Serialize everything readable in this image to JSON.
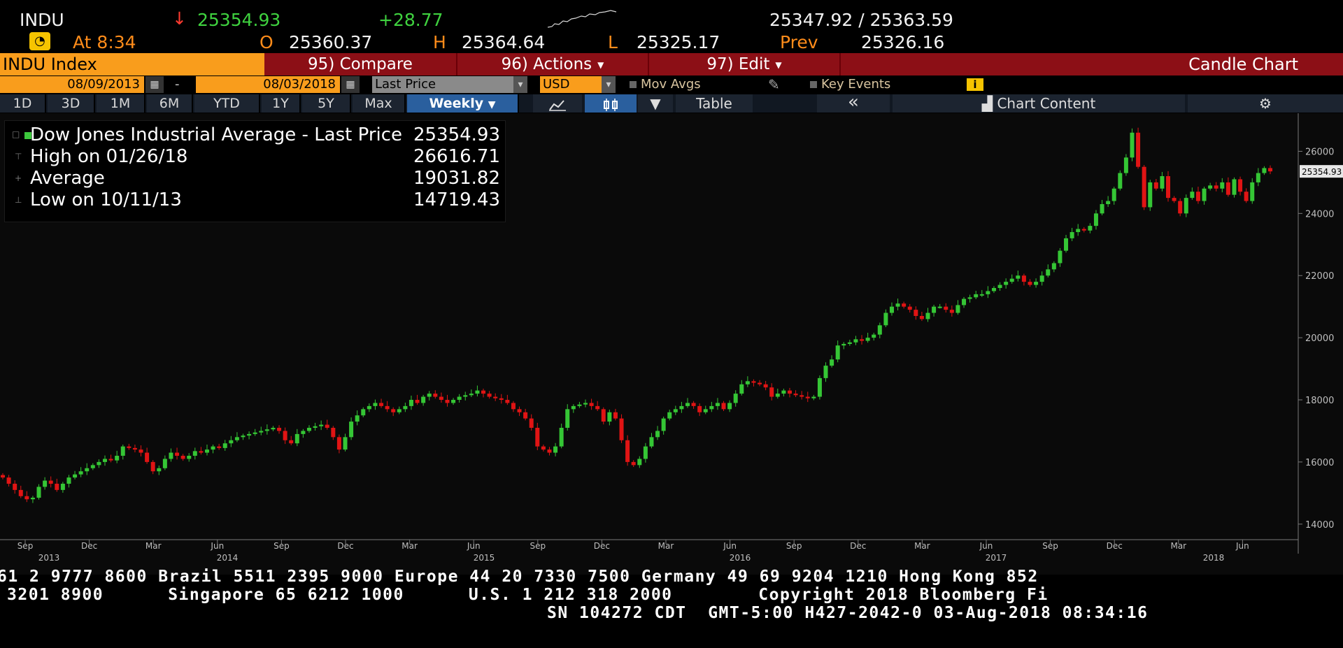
{
  "quote": {
    "ticker": "INDU",
    "arrow": "↓",
    "last": "25354.93",
    "change": "+28.77",
    "bid_ask": "25347.92 / 25363.59",
    "time_label": "At 8:34",
    "open_label": "O",
    "open": "25360.37",
    "high_label": "H",
    "high": "25364.64",
    "low_label": "L",
    "low": "25325.17",
    "prev_label": "Prev",
    "prev": "25326.16"
  },
  "command_bar": {
    "security": "INDU Index",
    "compare": "95) Compare",
    "actions": "96) Actions",
    "edit": "97) Edit",
    "chart_type": "Candle Chart"
  },
  "date_row": {
    "start_date": "08/09/2013",
    "dash": "-",
    "end_date": "08/03/2018",
    "field": "Last Price",
    "currency": "USD",
    "mov_avgs": "Mov Avgs",
    "key_events": "Key Events",
    "info": "i"
  },
  "period_tabs": [
    "1D",
    "3D",
    "1M",
    "6M",
    "YTD",
    "1Y",
    "5Y",
    "Max"
  ],
  "frequency": "Weekly",
  "table_label": "Table",
  "collapse_label": "«",
  "chart_content_label": "Chart Content",
  "legend": {
    "title": "Dow Jones Industrial Average - Last Price",
    "title_value": "25354.93",
    "high_label": "High on 01/26/18",
    "high_value": "26616.71",
    "avg_label": "Average",
    "avg_value": "19031.82",
    "low_label": "Low on 10/11/13",
    "low_value": "14719.43"
  },
  "chart_data": {
    "type": "candlestick",
    "frequency": "weekly",
    "ylim": [
      13500,
      27000
    ],
    "y_ticks": [
      14000,
      16000,
      18000,
      20000,
      22000,
      24000,
      26000
    ],
    "last_price_tag": "25354.93",
    "month_ticks": [
      "Sep",
      "Dec",
      "Mar",
      "Jun",
      "Sep",
      "Dec",
      "Mar",
      "Jun",
      "Sep",
      "Dec",
      "Mar",
      "Jun",
      "Sep",
      "Dec",
      "Mar",
      "Jun",
      "Sep",
      "Dec",
      "Mar",
      "Jun"
    ],
    "year_labels": [
      "2013",
      "2014",
      "2015",
      "2016",
      "2017",
      "2018"
    ],
    "colors": {
      "up": "#35c635",
      "down": "#e01414",
      "axis_text": "#bfbfbf",
      "background": "#0a0a0a"
    },
    "closes": [
      15500,
      15300,
      15100,
      14900,
      14800,
      14850,
      15200,
      15400,
      15300,
      15100,
      15300,
      15500,
      15600,
      15700,
      15800,
      15900,
      16000,
      16100,
      16050,
      16200,
      16500,
      16450,
      16400,
      16300,
      16000,
      15700,
      15800,
      16100,
      16300,
      16200,
      16100,
      16200,
      16350,
      16300,
      16400,
      16500,
      16450,
      16600,
      16700,
      16800,
      16850,
      16900,
      16950,
      17000,
      17050,
      17100,
      17000,
      16700,
      16600,
      16900,
      17000,
      17100,
      17150,
      17200,
      17100,
      16800,
      16400,
      16800,
      17300,
      17500,
      17700,
      17800,
      17900,
      17800,
      17700,
      17600,
      17700,
      17800,
      18000,
      17900,
      18100,
      18200,
      18100,
      18000,
      17900,
      18000,
      18100,
      18150,
      18200,
      18300,
      18200,
      18100,
      18050,
      18000,
      17900,
      17700,
      17600,
      17400,
      17100,
      16500,
      16400,
      16300,
      16500,
      17100,
      17700,
      17800,
      17850,
      17900,
      17800,
      17700,
      17300,
      17600,
      17400,
      16700,
      16000,
      15900,
      16100,
      16500,
      16800,
      17000,
      17400,
      17600,
      17700,
      17800,
      17900,
      17800,
      17600,
      17700,
      17800,
      17900,
      17700,
      17900,
      18200,
      18500,
      18600,
      18550,
      18500,
      18400,
      18100,
      18200,
      18300,
      18200,
      18150,
      18100,
      18050,
      18100,
      18700,
      19100,
      19300,
      19750,
      19800,
      19850,
      19950,
      19900,
      20000,
      20100,
      20400,
      20800,
      21000,
      21100,
      21000,
      20900,
      20700,
      20600,
      20800,
      21000,
      21000,
      20900,
      20800,
      21050,
      21250,
      21300,
      21400,
      21400,
      21500,
      21600,
      21700,
      21800,
      21900,
      22000,
      21800,
      21700,
      21800,
      22000,
      22200,
      22400,
      22800,
      23200,
      23400,
      23500,
      23450,
      23600,
      24000,
      24300,
      24400,
      24800,
      25300,
      25800,
      26600,
      25500,
      24200,
      25000,
      24800,
      25200,
      24500,
      24400,
      24000,
      24500,
      24700,
      24400,
      24800,
      24900,
      24800,
      25000,
      24600,
      25100,
      24700,
      24400,
      25000,
      25300,
      25460,
      25354
    ]
  },
  "footer": {
    "line1": "61 2 9777 8600 Brazil 5511 2395 9000 Europe 44 20 7330 7500 Germany 49 69 9204 1210 Hong Kong 852",
    "line2": "3201 8900      Singapore 65 6212 1000      U.S. 1 212 318 2000        Copyright 2018 Bloomberg Fi",
    "line3": "SN 104272 CDT  GMT-5:00 H427-2042-0 03-Aug-2018 08:34:16"
  }
}
